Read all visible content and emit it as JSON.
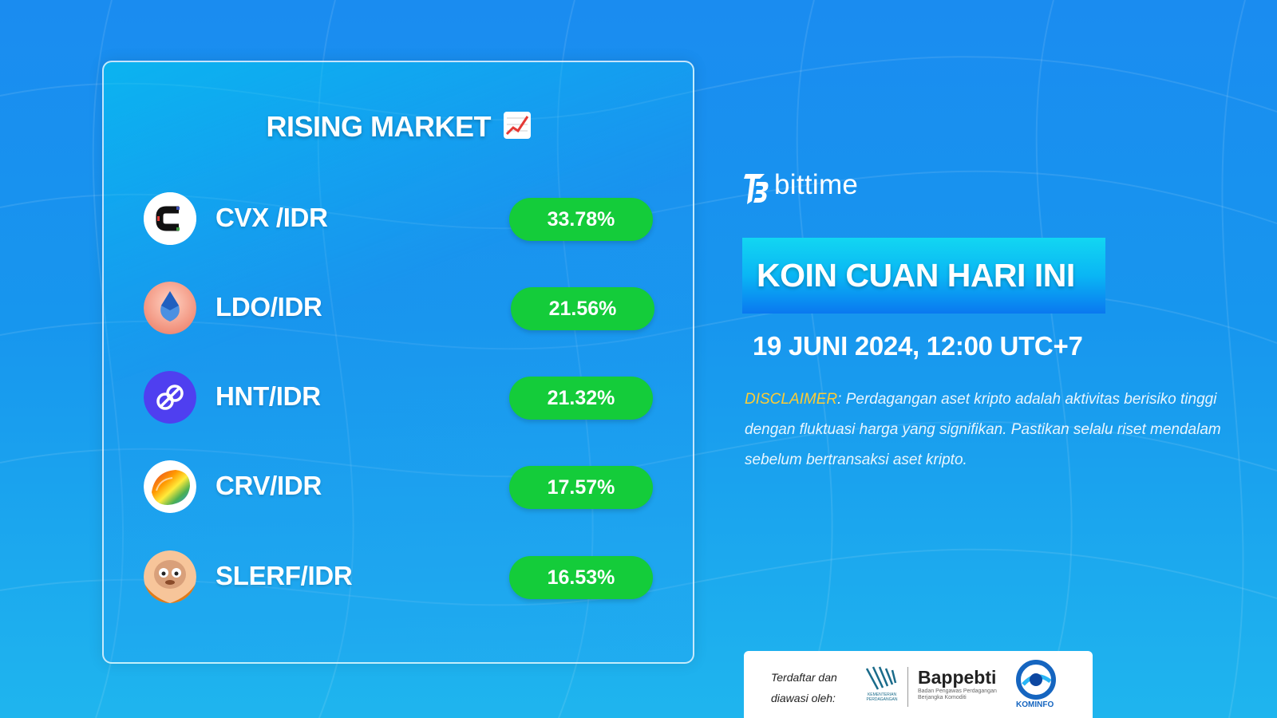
{
  "card": {
    "title": "RISING MARKET",
    "title_icon": "chart-increasing-icon",
    "coins": [
      {
        "pair": "CVX /IDR",
        "change": "33.78%",
        "icon": "convex-logo"
      },
      {
        "pair": "LDO/IDR",
        "change": "21.56%",
        "icon": "lido-logo"
      },
      {
        "pair": "HNT/IDR",
        "change": "21.32%",
        "icon": "helium-logo"
      },
      {
        "pair": "CRV/IDR",
        "change": "17.57%",
        "icon": "curve-logo"
      },
      {
        "pair": "SLERF/IDR",
        "change": "16.53%",
        "icon": "slerf-logo"
      }
    ]
  },
  "brand": {
    "name": "bittime"
  },
  "headline": "KOIN CUAN HARI INI",
  "date": "19 JUNI 2024, 12:00 UTC+7",
  "disclaimer": {
    "label": "DISCLAIMER",
    "text": ": Perdagangan aset kripto adalah aktivitas berisiko tinggi dengan fluktuasi harga yang signifikan. Pastikan selalu riset mendalam sebelum bertransaksi aset kripto."
  },
  "regulators": {
    "caption_line1": "Terdaftar dan",
    "caption_line2": "diawasi oleh:",
    "kemendag_label": "KEMENTERIAN PERDAGANGAN",
    "bappebti_name": "Bappebti",
    "bappebti_sub": "Badan Pengawas Perdagangan Berjangka Komoditi",
    "kominfo_label": "KOMINFO"
  },
  "colors": {
    "background": "#1a8cf0",
    "badge_green": "#14cc3a",
    "disclaimer_label": "#ffcc33"
  }
}
